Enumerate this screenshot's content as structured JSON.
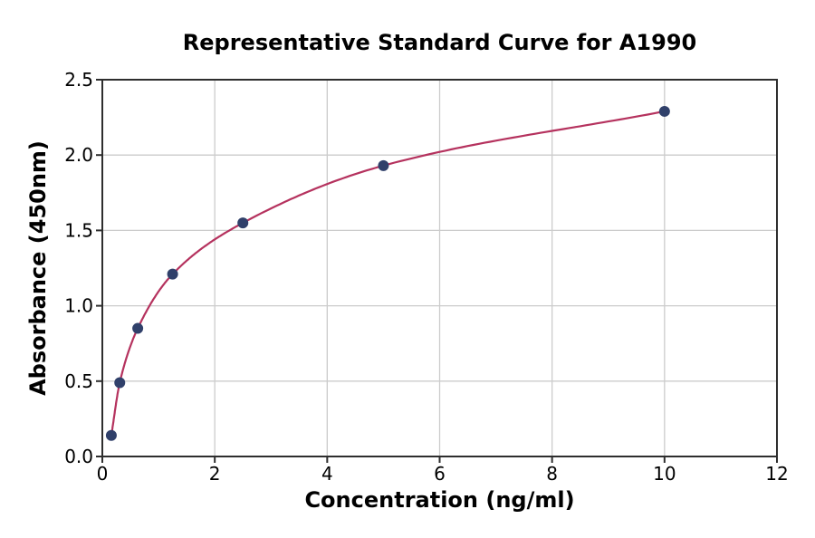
{
  "chart_data": {
    "type": "scatter",
    "title": "Representative Standard Curve for A1990",
    "xlabel": "Concentration (ng/ml)",
    "ylabel": "Absorbance (450nm)",
    "xlim": [
      0,
      12
    ],
    "ylim": [
      0.0,
      2.5
    ],
    "xticks": [
      0,
      2,
      4,
      6,
      8,
      10,
      12
    ],
    "xtick_labels": [
      "0",
      "2",
      "4",
      "6",
      "8",
      "10",
      "12"
    ],
    "yticks": [
      0.0,
      0.5,
      1.0,
      1.5,
      2.0,
      2.5
    ],
    "ytick_labels": [
      "0.0",
      "0.5",
      "1.0",
      "1.5",
      "2.0",
      "2.5"
    ],
    "grid": true,
    "legend_position": "none",
    "points": [
      {
        "x": 0.16,
        "y": 0.14
      },
      {
        "x": 0.31,
        "y": 0.49
      },
      {
        "x": 0.63,
        "y": 0.85
      },
      {
        "x": 1.25,
        "y": 1.21
      },
      {
        "x": 2.5,
        "y": 1.55
      },
      {
        "x": 5,
        "y": 1.93
      },
      {
        "x": 10,
        "y": 2.29
      }
    ],
    "fit": "smooth saturating curve through all points, from first point to last point",
    "colors": {
      "curve": "#b5325e",
      "marker": "#30406a",
      "grid": "#cccccc",
      "axis": "#2e2e2e",
      "text": "#000000",
      "background": "#ffffff"
    }
  }
}
